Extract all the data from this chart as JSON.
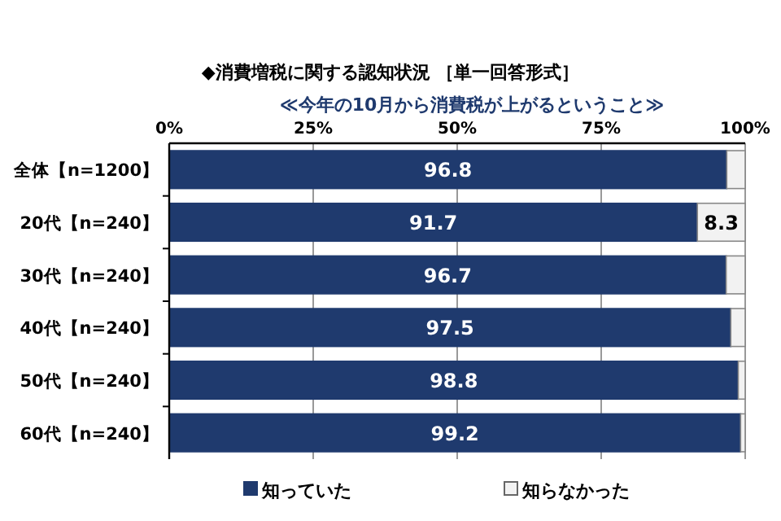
{
  "chart_data": {
    "type": "bar",
    "orientation": "horizontal",
    "stacked": true,
    "title": "◆消費増税に関する認知状況 ［単一回答形式］",
    "subtitle": "≪今年の10月から消費税が上がるということ≫",
    "categories": [
      "全体【n=1200】",
      "20代【n=240】",
      "30代【n=240】",
      "40代【n=240】",
      "50代【n=240】",
      "60代【n=240】"
    ],
    "series": [
      {
        "name": "知っていた",
        "color": "#1f3a6e",
        "values": [
          96.8,
          91.7,
          96.7,
          97.5,
          98.8,
          99.2
        ],
        "value_labels": [
          "96.8",
          "91.7",
          "96.7",
          "97.5",
          "98.8",
          "99.2"
        ]
      },
      {
        "name": "知らなかった",
        "color": "#f2f2f2",
        "values": [
          3.2,
          8.3,
          3.3,
          2.5,
          1.2,
          0.8
        ],
        "value_labels": [
          null,
          "8.3",
          null,
          null,
          null,
          null
        ]
      }
    ],
    "xlim": [
      0,
      100
    ],
    "xticks": [
      {
        "value": 0,
        "label": "0%"
      },
      {
        "value": 25,
        "label": "25%"
      },
      {
        "value": 50,
        "label": "50%"
      },
      {
        "value": 75,
        "label": "75%"
      },
      {
        "value": 100,
        "label": "100%"
      }
    ],
    "grid": "x",
    "legend": "bottom"
  }
}
